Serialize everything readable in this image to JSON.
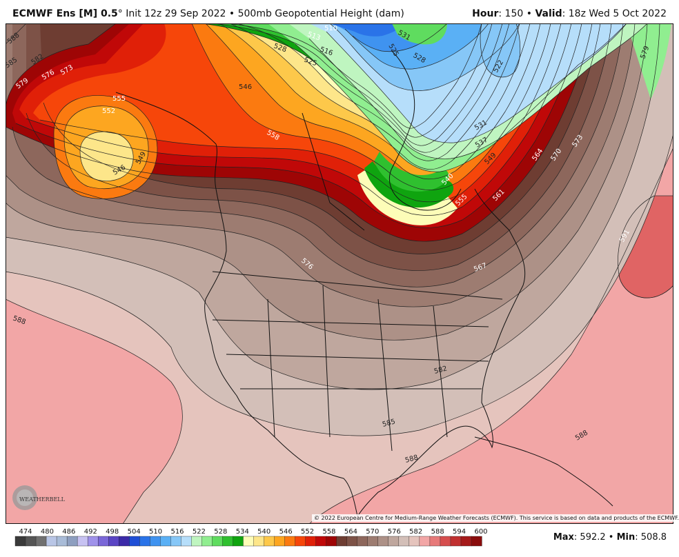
{
  "header": {
    "model": "ECMWF Ens [M] 0.5",
    "degree": "°",
    "init": "Init 12z 29 Sep 2022",
    "sep": "•",
    "product": "500mb Geopotential Height (dam)",
    "hour_label": "Hour",
    "hour_value": ": 150",
    "valid_label": "Valid",
    "valid_value": ": 18z Wed 5 Oct 2022"
  },
  "footer": {
    "copyright": "© 2022 European Centre for Medium-Range Weather Forecasts (ECMWF). This service is based on data and products of the ECMWF.",
    "max_label": "Max",
    "max_value": ": 592.2",
    "min_label": "Min",
    "min_value": ": 508.8",
    "logo_text": "WEATHERBELL"
  },
  "colorbar": {
    "labels": [
      "474",
      "480",
      "486",
      "492",
      "498",
      "504",
      "510",
      "516",
      "522",
      "528",
      "534",
      "540",
      "546",
      "552",
      "558",
      "564",
      "570",
      "576",
      "582",
      "588",
      "594",
      "600"
    ],
    "colors": [
      "#3a3a3a",
      "#555555",
      "#707070",
      "#b9c6e6",
      "#a9bcd8",
      "#8e9fc0",
      "#c7c2f2",
      "#9f92ea",
      "#7a67d8",
      "#5a45c4",
      "#3b2aa8",
      "#1f4fd6",
      "#2a73e8",
      "#3f93f0",
      "#5ab0f5",
      "#86c7f7",
      "#b6defa",
      "#bff5c0",
      "#90ee90",
      "#5fdc5f",
      "#2fc02f",
      "#0fa40f",
      "#fdfdb8",
      "#fde68a",
      "#fdc84a",
      "#fda620",
      "#fb7a10",
      "#f6460a",
      "#e02008",
      "#c00808",
      "#9e0505",
      "#6e3d32",
      "#7d5247",
      "#8d675c",
      "#9d7c71",
      "#ad9187",
      "#bfa79e",
      "#d3bfb8",
      "#e5c4bd",
      "#f2a6a6",
      "#e77a7a",
      "#d64e4e",
      "#c03030",
      "#a51a1a",
      "#8a0c0c"
    ]
  },
  "contour_labels": [
    "588",
    "585",
    "582",
    "576",
    "573",
    "579",
    "555",
    "552",
    "546",
    "549",
    "546",
    "558",
    "528",
    "525",
    "516",
    "513",
    "510",
    "531",
    "528",
    "525",
    "522",
    "531",
    "537",
    "549",
    "540",
    "555",
    "561",
    "564",
    "570",
    "573",
    "579",
    "591",
    "576",
    "567",
    "588",
    "582",
    "585",
    "588",
    "588"
  ],
  "colors": {
    "background_588": "#e5c4bd",
    "pink_588": "#f2a6a6",
    "red_591": "#e06464",
    "border": "#111111"
  }
}
